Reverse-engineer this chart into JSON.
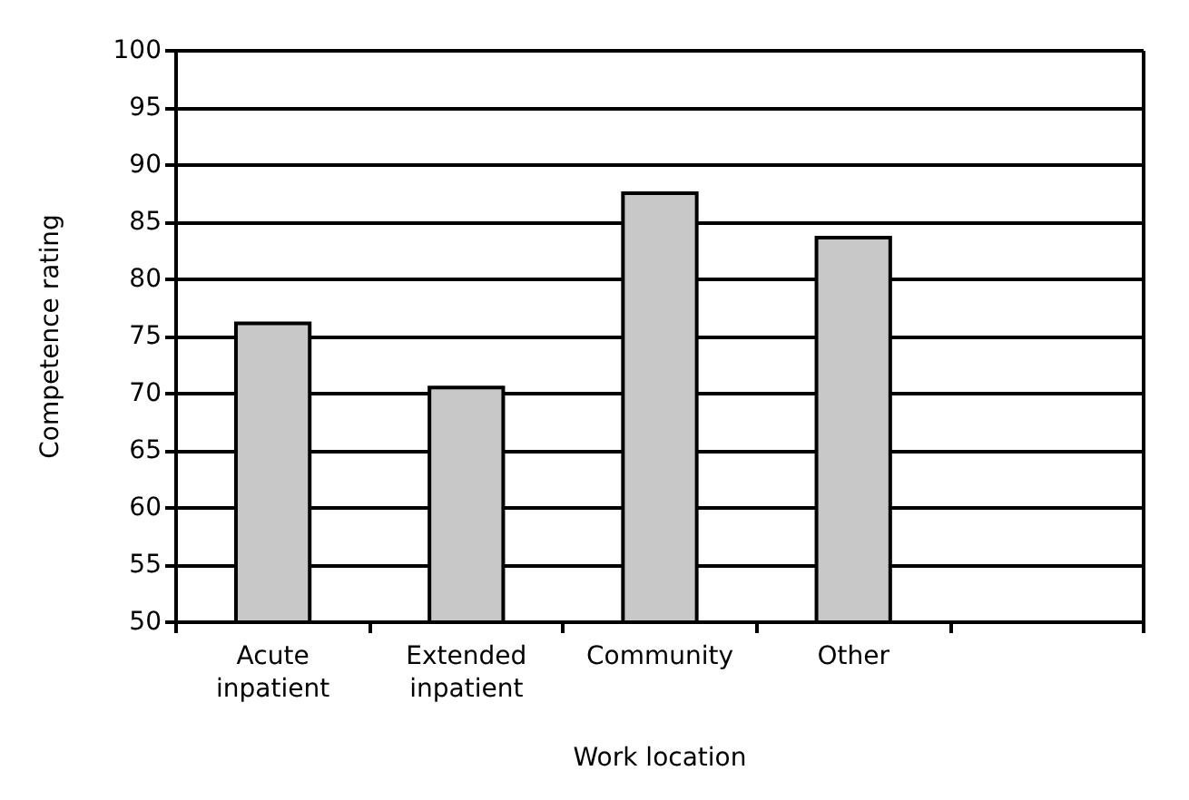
{
  "chart_data": {
    "type": "bar",
    "xlabel": "Work location",
    "ylabel": "Competence rating",
    "categories": [
      "Acute\ninpatient",
      "Extended\ninpatient",
      "Community",
      "Other",
      null
    ],
    "values": [
      76.3,
      70.7,
      87.7,
      83.8,
      null
    ],
    "color": "#c8c8c8",
    "ylim": [
      50,
      100
    ],
    "yticks": [
      50,
      55,
      60,
      65,
      70,
      75,
      80,
      85,
      90,
      95,
      100
    ],
    "grid": "y"
  }
}
